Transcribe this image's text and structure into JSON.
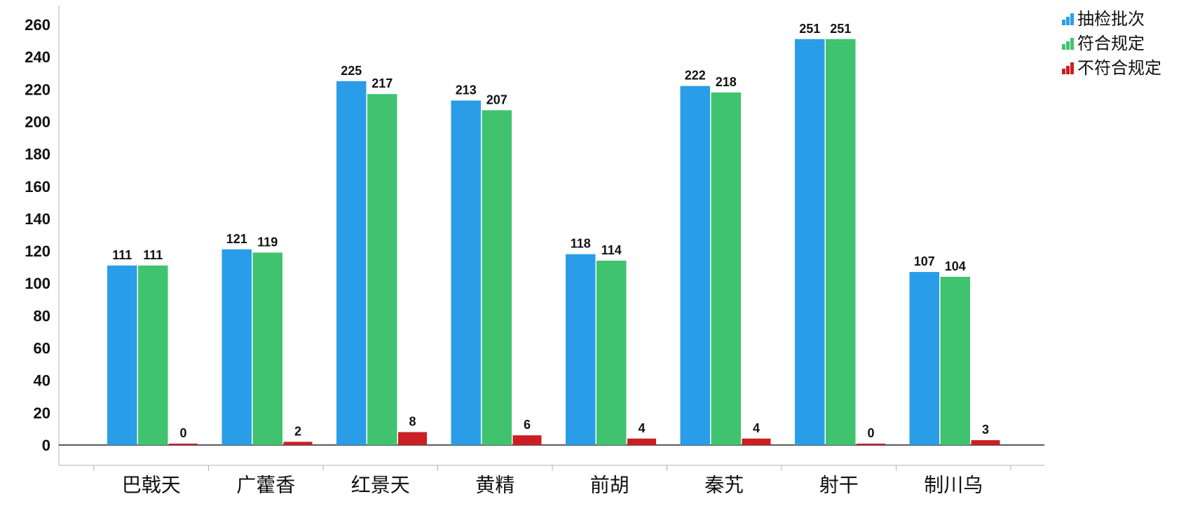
{
  "chart_data": {
    "type": "bar",
    "title": "",
    "xlabel": "",
    "ylabel": "",
    "categories": [
      "巴戟天",
      "广藿香",
      "红景天",
      "黄精",
      "前胡",
      "秦艽",
      "射干",
      "制川乌"
    ],
    "series": [
      {
        "name": "抽检批次",
        "color": "#2a9de8",
        "values": [
          111,
          121,
          225,
          213,
          118,
          222,
          251,
          107
        ]
      },
      {
        "name": "符合规定",
        "color": "#40c36f",
        "values": [
          111,
          119,
          217,
          207,
          114,
          218,
          251,
          104
        ]
      },
      {
        "name": "不符合规定",
        "color": "#cc1f24",
        "values": [
          0,
          2,
          8,
          6,
          4,
          4,
          0,
          3
        ]
      }
    ],
    "ylim": [
      0,
      260
    ],
    "yticks": [
      0,
      20,
      40,
      60,
      80,
      100,
      120,
      140,
      160,
      180,
      200,
      220,
      240,
      260
    ],
    "grid": false,
    "data_labels": true,
    "legend": "top-right"
  }
}
